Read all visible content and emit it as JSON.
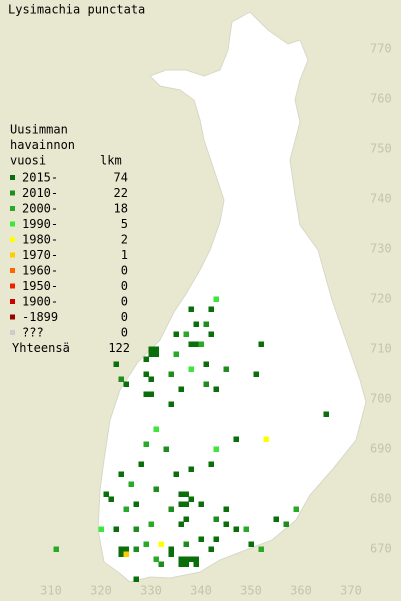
{
  "title": "Lysimachia punctata",
  "legend": {
    "heading": [
      "Uusimman",
      "havainnon",
      "vuosi"
    ],
    "count_header": "lkm",
    "items": [
      {
        "label": "2015-",
        "color": "#0a6e0a",
        "count": 74
      },
      {
        "label": "2010-",
        "color": "#1e8c1e",
        "count": 22
      },
      {
        "label": "2000-",
        "color": "#28aa28",
        "count": 18
      },
      {
        "label": "1990-",
        "color": "#3ce63c",
        "count": 5
      },
      {
        "label": "1980-",
        "color": "#ffff00",
        "count": 2
      },
      {
        "label": "1970-",
        "color": "#ffcc00",
        "count": 1
      },
      {
        "label": "1960-",
        "color": "#ff6600",
        "count": 0
      },
      {
        "label": "1950-",
        "color": "#ee2200",
        "count": 0
      },
      {
        "label": "1900-",
        "color": "#cc0000",
        "count": 0
      },
      {
        "label": "-1899",
        "color": "#990000",
        "count": 0
      },
      {
        "label": "???",
        "color": "#cccccc",
        "count": 0
      }
    ],
    "total_label": "Yhteensä",
    "total": 122
  },
  "xticks": [
    310,
    320,
    330,
    340,
    350,
    360,
    370
  ],
  "yticks": [
    670,
    680,
    690,
    700,
    710,
    720,
    730,
    740,
    750,
    760,
    770
  ],
  "points": [
    [
      343,
      720,
      3
    ],
    [
      342,
      718,
      0
    ],
    [
      338,
      718,
      0
    ],
    [
      339,
      715,
      0
    ],
    [
      341,
      715,
      1
    ],
    [
      342,
      713,
      0
    ],
    [
      338,
      711,
      0
    ],
    [
      339,
      711,
      0
    ],
    [
      337,
      713,
      2
    ],
    [
      335,
      713,
      0
    ],
    [
      340,
      711,
      2
    ],
    [
      352,
      711,
      0
    ],
    [
      330,
      709,
      0
    ],
    [
      331,
      709,
      0
    ],
    [
      330,
      710,
      0
    ],
    [
      331,
      710,
      0
    ],
    [
      329,
      708,
      0
    ],
    [
      323,
      707,
      0
    ],
    [
      324,
      704,
      1
    ],
    [
      325,
      703,
      0
    ],
    [
      335,
      709,
      2
    ],
    [
      341,
      707,
      0
    ],
    [
      338,
      706,
      3
    ],
    [
      334,
      705,
      1
    ],
    [
      329,
      705,
      0
    ],
    [
      330,
      704,
      0
    ],
    [
      345,
      706,
      1
    ],
    [
      351,
      705,
      0
    ],
    [
      336,
      702,
      0
    ],
    [
      341,
      703,
      1
    ],
    [
      329,
      701,
      0
    ],
    [
      330,
      701,
      0
    ],
    [
      343,
      702,
      0
    ],
    [
      365,
      697,
      0
    ],
    [
      334,
      699,
      0
    ],
    [
      331,
      694,
      3
    ],
    [
      347,
      692,
      0
    ],
    [
      353,
      692,
      4
    ],
    [
      329,
      691,
      2
    ],
    [
      333,
      690,
      1
    ],
    [
      343,
      690,
      3
    ],
    [
      342,
      687,
      0
    ],
    [
      338,
      686,
      0
    ],
    [
      335,
      685,
      0
    ],
    [
      328,
      687,
      0
    ],
    [
      324,
      685,
      0
    ],
    [
      326,
      683,
      2
    ],
    [
      321,
      681,
      0
    ],
    [
      331,
      682,
      1
    ],
    [
      336,
      681,
      0
    ],
    [
      337,
      681,
      0
    ],
    [
      338,
      680,
      0
    ],
    [
      336,
      679,
      0
    ],
    [
      337,
      679,
      0
    ],
    [
      327,
      679,
      0
    ],
    [
      325,
      678,
      2
    ],
    [
      322,
      680,
      0
    ],
    [
      334,
      678,
      1
    ],
    [
      340,
      679,
      0
    ],
    [
      345,
      678,
      0
    ],
    [
      359,
      678,
      2
    ],
    [
      357,
      675,
      1
    ],
    [
      355,
      676,
      0
    ],
    [
      345,
      675,
      0
    ],
    [
      343,
      676,
      1
    ],
    [
      347,
      674,
      0
    ],
    [
      349,
      674,
      2
    ],
    [
      337,
      676,
      0
    ],
    [
      336,
      675,
      0
    ],
    [
      330,
      675,
      2
    ],
    [
      320,
      674,
      3
    ],
    [
      323,
      674,
      0
    ],
    [
      327,
      674,
      1
    ],
    [
      343,
      672,
      0
    ],
    [
      340,
      672,
      0
    ],
    [
      337,
      671,
      1
    ],
    [
      350,
      671,
      0
    ],
    [
      352,
      670,
      2
    ],
    [
      342,
      670,
      0
    ],
    [
      334,
      670,
      0
    ],
    [
      332,
      671,
      4
    ],
    [
      329,
      671,
      2
    ],
    [
      324,
      670,
      0
    ],
    [
      325,
      670,
      0
    ],
    [
      324,
      669,
      0
    ],
    [
      325,
      669,
      5
    ],
    [
      327,
      670,
      1
    ],
    [
      311,
      670,
      2
    ],
    [
      334,
      669,
      0
    ],
    [
      336,
      668,
      0
    ],
    [
      337,
      668,
      0
    ],
    [
      338,
      668,
      0
    ],
    [
      339,
      667,
      0
    ],
    [
      336,
      667,
      0
    ],
    [
      337,
      667,
      0
    ],
    [
      339,
      668,
      0
    ],
    [
      332,
      667,
      1
    ],
    [
      327,
      664,
      0
    ],
    [
      331,
      668,
      2
    ]
  ]
}
